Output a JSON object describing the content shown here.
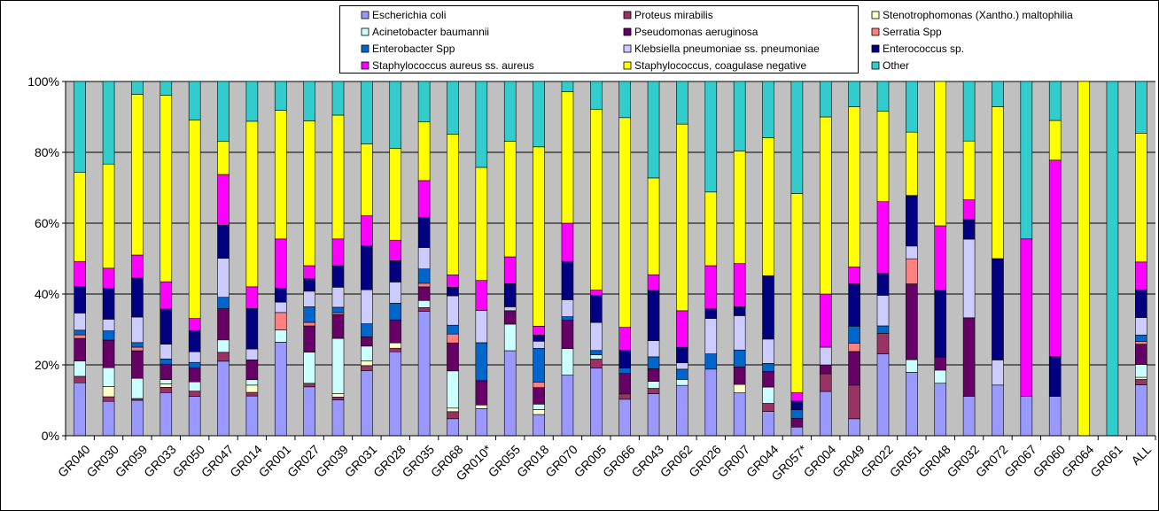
{
  "chart_data": {
    "type": "bar",
    "stacked": "percent",
    "ylim": [
      0,
      100
    ],
    "yticks": [
      "0%",
      "20%",
      "40%",
      "60%",
      "80%",
      "100%"
    ],
    "grid": true,
    "legend_position": "top",
    "plot_background": "#C0C0C0",
    "categories": [
      "GR040",
      "GR030",
      "GR059",
      "GR033",
      "GR050",
      "GR047",
      "GR014",
      "GR001",
      "GR027",
      "GR039",
      "GR031",
      "GR028",
      "GR035",
      "GR068",
      "GR010*",
      "GR055",
      "GR018",
      "GR070",
      "GR005",
      "GR066",
      "GR043",
      "GR062",
      "GR026",
      "GR007",
      "GR044",
      "GR057*",
      "GR004",
      "GR049",
      "GR022",
      "GR051",
      "GR048",
      "GR032",
      "GR072",
      "GR067",
      "GR060",
      "GR064",
      "GR061",
      "ALL"
    ],
    "series": [
      {
        "name": "Escherichia coli",
        "color": "#9999FF",
        "values": [
          14.8,
          9.7,
          10,
          12.3,
          11.1,
          21,
          11,
          24.3,
          13.8,
          10,
          18.4,
          23.7,
          34.8,
          4.8,
          7.6,
          24,
          5.9,
          17.1,
          18.8,
          10.3,
          12,
          14.3,
          18.8,
          12.1,
          7.3,
          2.5,
          12.5,
          5.3,
          22.2,
          17.9,
          14.8,
          11.1,
          14.3,
          11.1,
          11.1,
          0,
          0,
          14.3
        ]
      },
      {
        "name": "Proteus mirabilis",
        "color": "#993366",
        "values": [
          1.8,
          1.3,
          0.5,
          1.5,
          1.5,
          2.5,
          1,
          0,
          1,
          0.8,
          1.4,
          1,
          1,
          2,
          0,
          0,
          0,
          0,
          2.5,
          1.5,
          1.5,
          0,
          0,
          0,
          2.4,
          0,
          5,
          10.5,
          5.6,
          0,
          0,
          0,
          0,
          0,
          0,
          0,
          0,
          1.5
        ]
      },
      {
        "name": "Stenotrophomonas (Xantho.) maltophilia",
        "color": "#FFFFCC",
        "values": [
          0,
          2.9,
          0,
          1,
          0,
          0,
          2,
          0,
          0,
          1,
          1.3,
          1.5,
          0,
          1,
          1,
          0,
          1.4,
          0,
          0,
          0,
          0,
          0,
          0,
          2.4,
          0,
          0,
          0,
          0,
          0,
          0,
          0,
          0,
          0,
          0,
          0,
          0,
          0,
          0.6
        ]
      },
      {
        "name": "Acinetobacter baumannii",
        "color": "#CCFFFF",
        "values": [
          4.3,
          5.3,
          5.7,
          1.2,
          2.6,
          3.5,
          1.5,
          3.2,
          8.8,
          15.4,
          4.2,
          0,
          2,
          10.5,
          0,
          7.5,
          1.5,
          7.5,
          1.2,
          0,
          2,
          1.7,
          0,
          0,
          4.9,
          0,
          0,
          0,
          0,
          3.6,
          3.7,
          0,
          0,
          0,
          0,
          0,
          0,
          3.6
        ]
      },
      {
        "name": "Pseudomonas aeruginosa",
        "color": "#660066",
        "values": [
          6.3,
          7.8,
          7.8,
          4.4,
          4,
          8.8,
          5.5,
          0,
          7.4,
          6.7,
          2.6,
          6.5,
          3.8,
          7.9,
          6.8,
          3.8,
          4.6,
          8,
          0,
          5.8,
          3.6,
          0,
          0,
          4.9,
          4.7,
          2.5,
          2.5,
          10.5,
          0,
          21.4,
          3.7,
          22.2,
          0,
          0,
          0,
          0,
          0,
          5.7
        ]
      },
      {
        "name": "Serratia Spp",
        "color": "#FF8080",
        "values": [
          1,
          0,
          1,
          0,
          0,
          0,
          0,
          4.5,
          1,
          0.5,
          0,
          0,
          1,
          2.5,
          0,
          0,
          1.5,
          0,
          0,
          0,
          0,
          0,
          0,
          0,
          0,
          0,
          0,
          2.6,
          0,
          7.1,
          0,
          0,
          0,
          0,
          0,
          0,
          0,
          0.8
        ]
      },
      {
        "name": "Enterobacter Spp",
        "color": "#0066CC",
        "values": [
          1.3,
          2.6,
          1.3,
          1.5,
          1.5,
          3.2,
          0,
          0,
          4.4,
          1.5,
          3.7,
          4.7,
          4,
          2.5,
          10.6,
          0,
          9.4,
          1,
          1.2,
          1.5,
          3.4,
          2.9,
          4.3,
          4.8,
          2.4,
          2.5,
          0,
          5.3,
          2,
          0,
          0,
          0,
          0,
          0,
          0,
          0,
          0,
          1.8
        ]
      },
      {
        "name": "Klebsiella pneumoniae ss. pneumoniae",
        "color": "#CCCCFF",
        "values": [
          4.8,
          3.3,
          7.2,
          4.2,
          3,
          11,
          3,
          2.7,
          4.4,
          5.6,
          9.6,
          6,
          6,
          8.3,
          9,
          1.1,
          2,
          4.8,
          7.8,
          0,
          4.6,
          1.8,
          10,
          9.7,
          7.3,
          0,
          5,
          0,
          8.3,
          3.6,
          0,
          22.2,
          7.1,
          0,
          0,
          0,
          0,
          4.9
        ]
      },
      {
        "name": "Enterococcus sp.",
        "color": "#000080",
        "values": [
          7.4,
          8.7,
          11,
          10,
          6,
          9.3,
          11.2,
          3.6,
          3.5,
          6,
          12.4,
          6,
          8.4,
          2.4,
          0,
          6.5,
          1.7,
          10.8,
          7.5,
          5,
          14.3,
          4.4,
          2.7,
          2.5,
          19,
          2.5,
          0,
          13.2,
          5.9,
          14.3,
          18.8,
          5.5,
          28.6,
          0,
          11.2,
          0,
          0,
          7.8
        ]
      },
      {
        "name": "Staphylococcus aureus ss. aureus",
        "color": "#FF00FF",
        "values": [
          7,
          5.7,
          6.5,
          7.8,
          3.4,
          14.3,
          6,
          12.8,
          3.7,
          7.5,
          8.5,
          5.8,
          10.3,
          3.5,
          8.4,
          7.6,
          2.5,
          10.8,
          1.5,
          6.5,
          4.5,
          10.4,
          12.2,
          12.2,
          0,
          2.5,
          15,
          5.3,
          19.5,
          0,
          18.2,
          5.6,
          0,
          44.4,
          55.5,
          0,
          0,
          7.8
        ]
      },
      {
        "name": "Staphylococcus, coagulase negative",
        "color": "#FFFF00",
        "values": [
          24.9,
          29.4,
          45.4,
          53.2,
          56,
          9.3,
          45.8,
          33.4,
          40.9,
          34.6,
          20.3,
          25.9,
          16.4,
          39.7,
          31.6,
          32.6,
          49.9,
          37.1,
          50.3,
          59.2,
          27.6,
          53,
          20.8,
          31.8,
          41.4,
          57.6,
          50,
          50,
          24.5,
          17.9,
          40.7,
          16.6,
          42.9,
          0,
          11.2,
          100,
          0,
          36.2
        ]
      },
      {
        "name": "Other",
        "color": "#33CCCC",
        "values": [
          25.4,
          23.3,
          3.6,
          3.9,
          10.9,
          16.9,
          11,
          7.5,
          11.1,
          9.4,
          17.6,
          18.9,
          11.3,
          14.9,
          24,
          16.9,
          18.2,
          2.9,
          7.7,
          10.2,
          27.5,
          12.1,
          31.2,
          19.6,
          16.9,
          32.4,
          10,
          7.9,
          8.1,
          14.3,
          0,
          16.8,
          7.1,
          44.4,
          11,
          0,
          100,
          14.5
        ]
      }
    ]
  }
}
